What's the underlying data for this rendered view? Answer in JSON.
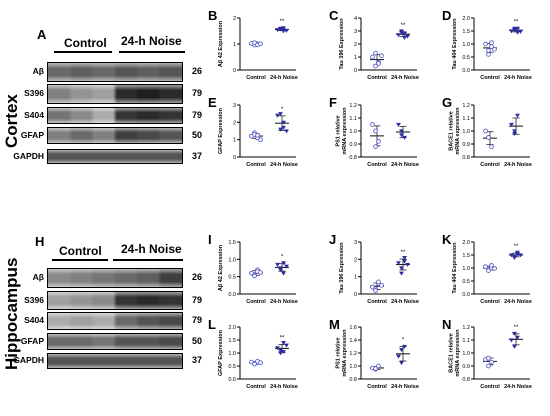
{
  "sections": {
    "cortex": "Cortex",
    "hippocampus": "Hippocampus"
  },
  "blots": {
    "A": {
      "letter": "A",
      "group_control": "Control",
      "group_noise": "24-h Noise",
      "rows": [
        {
          "label": "Aβ",
          "mw": "26"
        },
        {
          "label": "S396",
          "mw": "79"
        },
        {
          "label": "S404",
          "mw": "79"
        },
        {
          "label": "GFAP",
          "mw": "50"
        },
        {
          "label": "GAPDH",
          "mw": "37"
        }
      ]
    },
    "H": {
      "letter": "H",
      "group_control": "Control",
      "group_noise": "24-h Noise",
      "rows": [
        {
          "label": "Aβ",
          "mw": "26"
        },
        {
          "label": "S396",
          "mw": "79"
        },
        {
          "label": "S404",
          "mw": "79"
        },
        {
          "label": "GFAP",
          "mw": "50"
        },
        {
          "label": "GAPDH",
          "mw": "37"
        }
      ]
    }
  },
  "colors": {
    "control": "#5b5fc7",
    "noise": "#2b2ba6"
  },
  "chart_data": [
    {
      "panel": "B",
      "type": "scatter",
      "ylabel": "Aβ 42 Expression",
      "ylim": [
        0,
        2
      ],
      "yticks": [
        "0",
        "1",
        "2"
      ],
      "categories": [
        "Control",
        "24-h Noise"
      ],
      "sig": "**",
      "control": [
        1.02,
        0.96,
        1.0,
        1.05,
        0.97,
        1.01
      ],
      "noise": [
        1.55,
        1.6,
        1.5,
        1.57,
        1.62,
        1.52
      ]
    },
    {
      "panel": "C",
      "type": "scatter",
      "ylabel": "Tau 396 Expression",
      "ylim": [
        0,
        4
      ],
      "yticks": [
        "0",
        "1",
        "2",
        "3",
        "4"
      ],
      "categories": [
        "Control",
        "24-h Noise"
      ],
      "sig": "**",
      "control": [
        1.0,
        0.3,
        0.6,
        1.3,
        0.5,
        1.1
      ],
      "noise": [
        2.7,
        3.0,
        2.5,
        2.9,
        2.8,
        2.6
      ]
    },
    {
      "panel": "D",
      "type": "scatter",
      "ylabel": "Tau 404 Expression",
      "ylim": [
        0,
        2
      ],
      "yticks": [
        "0.0",
        "0.5",
        "1.0",
        "1.5",
        "2.0"
      ],
      "categories": [
        "Control",
        "24-h Noise"
      ],
      "sig": "**",
      "control": [
        1.0,
        0.6,
        0.9,
        0.75,
        1.05,
        0.8
      ],
      "noise": [
        1.5,
        1.6,
        1.45,
        1.55,
        1.6,
        1.48
      ]
    },
    {
      "panel": "E",
      "type": "scatter",
      "ylabel": "GFAP Expression",
      "ylim": [
        0,
        3
      ],
      "yticks": [
        "0",
        "1",
        "2",
        "3"
      ],
      "categories": [
        "Control",
        "24-h Noise"
      ],
      "sig": "*",
      "control": [
        1.2,
        1.4,
        1.1,
        1.3,
        1.25,
        1.0
      ],
      "noise": [
        2.4,
        1.6,
        2.0,
        2.5,
        1.7,
        1.5
      ]
    },
    {
      "panel": "F",
      "type": "scatter",
      "ylabel": "PS1 relative mRNA expression",
      "ylim": [
        0.8,
        1.2
      ],
      "yticks": [
        "0.8",
        "0.9",
        "1.0",
        "1.1",
        "1.2"
      ],
      "categories": [
        "Control",
        "24-h Noise"
      ],
      "sig": "",
      "control": [
        1.05,
        0.88,
        0.92,
        1.0
      ],
      "noise": [
        1.05,
        1.0,
        0.95,
        0.97
      ]
    },
    {
      "panel": "G",
      "type": "scatter",
      "ylabel": "BACE1 relative mRNA expression",
      "ylim": [
        0.8,
        1.2
      ],
      "yticks": [
        "0.8",
        "0.9",
        "1.0",
        "1.1",
        "1.2"
      ],
      "categories": [
        "Control",
        "24-h Noise"
      ],
      "sig": "",
      "control": [
        1.0,
        0.95,
        0.88,
        0.95
      ],
      "noise": [
        1.05,
        1.0,
        1.12,
        0.98
      ]
    },
    {
      "panel": "I",
      "type": "scatter",
      "ylabel": "Aβ 42 Expression",
      "ylim": [
        0,
        1.5
      ],
      "yticks": [
        "0.0",
        "0.5",
        "1.0",
        "1.5"
      ],
      "categories": [
        "Control",
        "24-h Noise"
      ],
      "sig": "*",
      "control": [
        0.6,
        0.55,
        0.7,
        0.52,
        0.65,
        0.62
      ],
      "noise": [
        0.85,
        0.7,
        0.9,
        0.75,
        0.6,
        0.8
      ]
    },
    {
      "panel": "J",
      "type": "scatter",
      "ylabel": "Tau 396 Expression",
      "ylim": [
        0,
        3
      ],
      "yticks": [
        "0",
        "1",
        "2",
        "3"
      ],
      "categories": [
        "Control",
        "24-h Noise"
      ],
      "sig": "**",
      "control": [
        0.4,
        0.3,
        0.6,
        0.2,
        0.7,
        0.5
      ],
      "noise": [
        1.8,
        1.5,
        2.1,
        1.2,
        1.9,
        1.7
      ]
    },
    {
      "panel": "K",
      "type": "scatter",
      "ylabel": "Tau 404 Expression",
      "ylim": [
        0,
        2
      ],
      "yticks": [
        "0.0",
        "0.5",
        "1.0",
        "1.5",
        "2.0"
      ],
      "categories": [
        "Control",
        "24-h Noise"
      ],
      "sig": "**",
      "control": [
        1.05,
        0.95,
        1.0,
        0.9,
        1.1,
        0.98
      ],
      "noise": [
        1.5,
        1.45,
        1.6,
        1.4,
        1.55,
        1.5
      ]
    },
    {
      "panel": "L",
      "type": "scatter",
      "ylabel": "GFAP Expression",
      "ylim": [
        0,
        2
      ],
      "yticks": [
        "0.0",
        "0.5",
        "1.0",
        "1.5",
        "2.0"
      ],
      "categories": [
        "Control",
        "24-h Noise"
      ],
      "sig": "**",
      "control": [
        0.65,
        0.6,
        0.62,
        0.58,
        0.68,
        0.63
      ],
      "noise": [
        1.2,
        1.0,
        1.4,
        1.1,
        1.05,
        1.3
      ]
    },
    {
      "panel": "M",
      "type": "scatter",
      "ylabel": "PS1 relative mRNA expression",
      "ylim": [
        0.8,
        1.6
      ],
      "yticks": [
        "0.8",
        "1.0",
        "1.2",
        "1.4",
        "1.6"
      ],
      "categories": [
        "Control",
        "24-h Noise"
      ],
      "sig": "*",
      "control": [
        0.97,
        0.95,
        1.0,
        0.96
      ],
      "noise": [
        1.15,
        1.25,
        1.3,
        1.05
      ]
    },
    {
      "panel": "N",
      "type": "scatter",
      "ylabel": "BACE1 relative mRNA expression",
      "ylim": [
        0.8,
        1.2
      ],
      "yticks": [
        "0.8",
        "0.9",
        "1.0",
        "1.1",
        "1.2"
      ],
      "categories": [
        "Control",
        "24-h Noise"
      ],
      "sig": "**",
      "control": [
        0.95,
        0.9,
        0.93,
        0.96
      ],
      "noise": [
        1.1,
        1.05,
        1.12,
        1.15
      ]
    }
  ]
}
